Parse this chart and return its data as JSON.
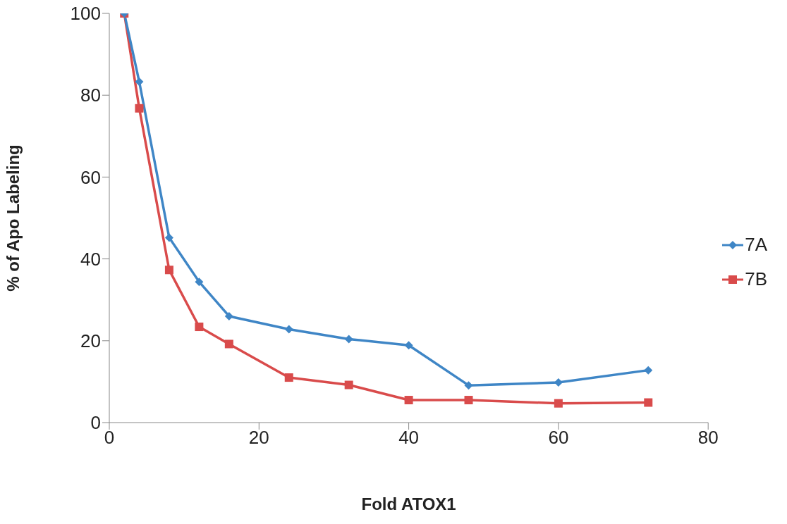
{
  "chart_data": {
    "type": "line",
    "xlabel": "Fold ATOX1",
    "ylabel": "% of Apo Labeling",
    "x": [
      2,
      4,
      8,
      12,
      16,
      24,
      32,
      40,
      48,
      60,
      72
    ],
    "xlim": [
      0,
      80
    ],
    "xticks": [
      0,
      20,
      40,
      60,
      80
    ],
    "ylim": [
      0,
      100
    ],
    "yticks": [
      0,
      20,
      40,
      60,
      80,
      100
    ],
    "grid": false,
    "legend": "right",
    "series": [
      {
        "name": "7A",
        "color": "#3f86c6",
        "marker": "diamond",
        "values": [
          100,
          83.3,
          45.2,
          34.4,
          26.0,
          22.8,
          20.4,
          18.9,
          9.1,
          9.8,
          12.8
        ]
      },
      {
        "name": "7B",
        "color": "#d94b4b",
        "marker": "square",
        "values": [
          100,
          76.8,
          37.3,
          23.4,
          19.2,
          11.0,
          9.2,
          5.5,
          5.5,
          4.7,
          4.9
        ]
      }
    ]
  }
}
